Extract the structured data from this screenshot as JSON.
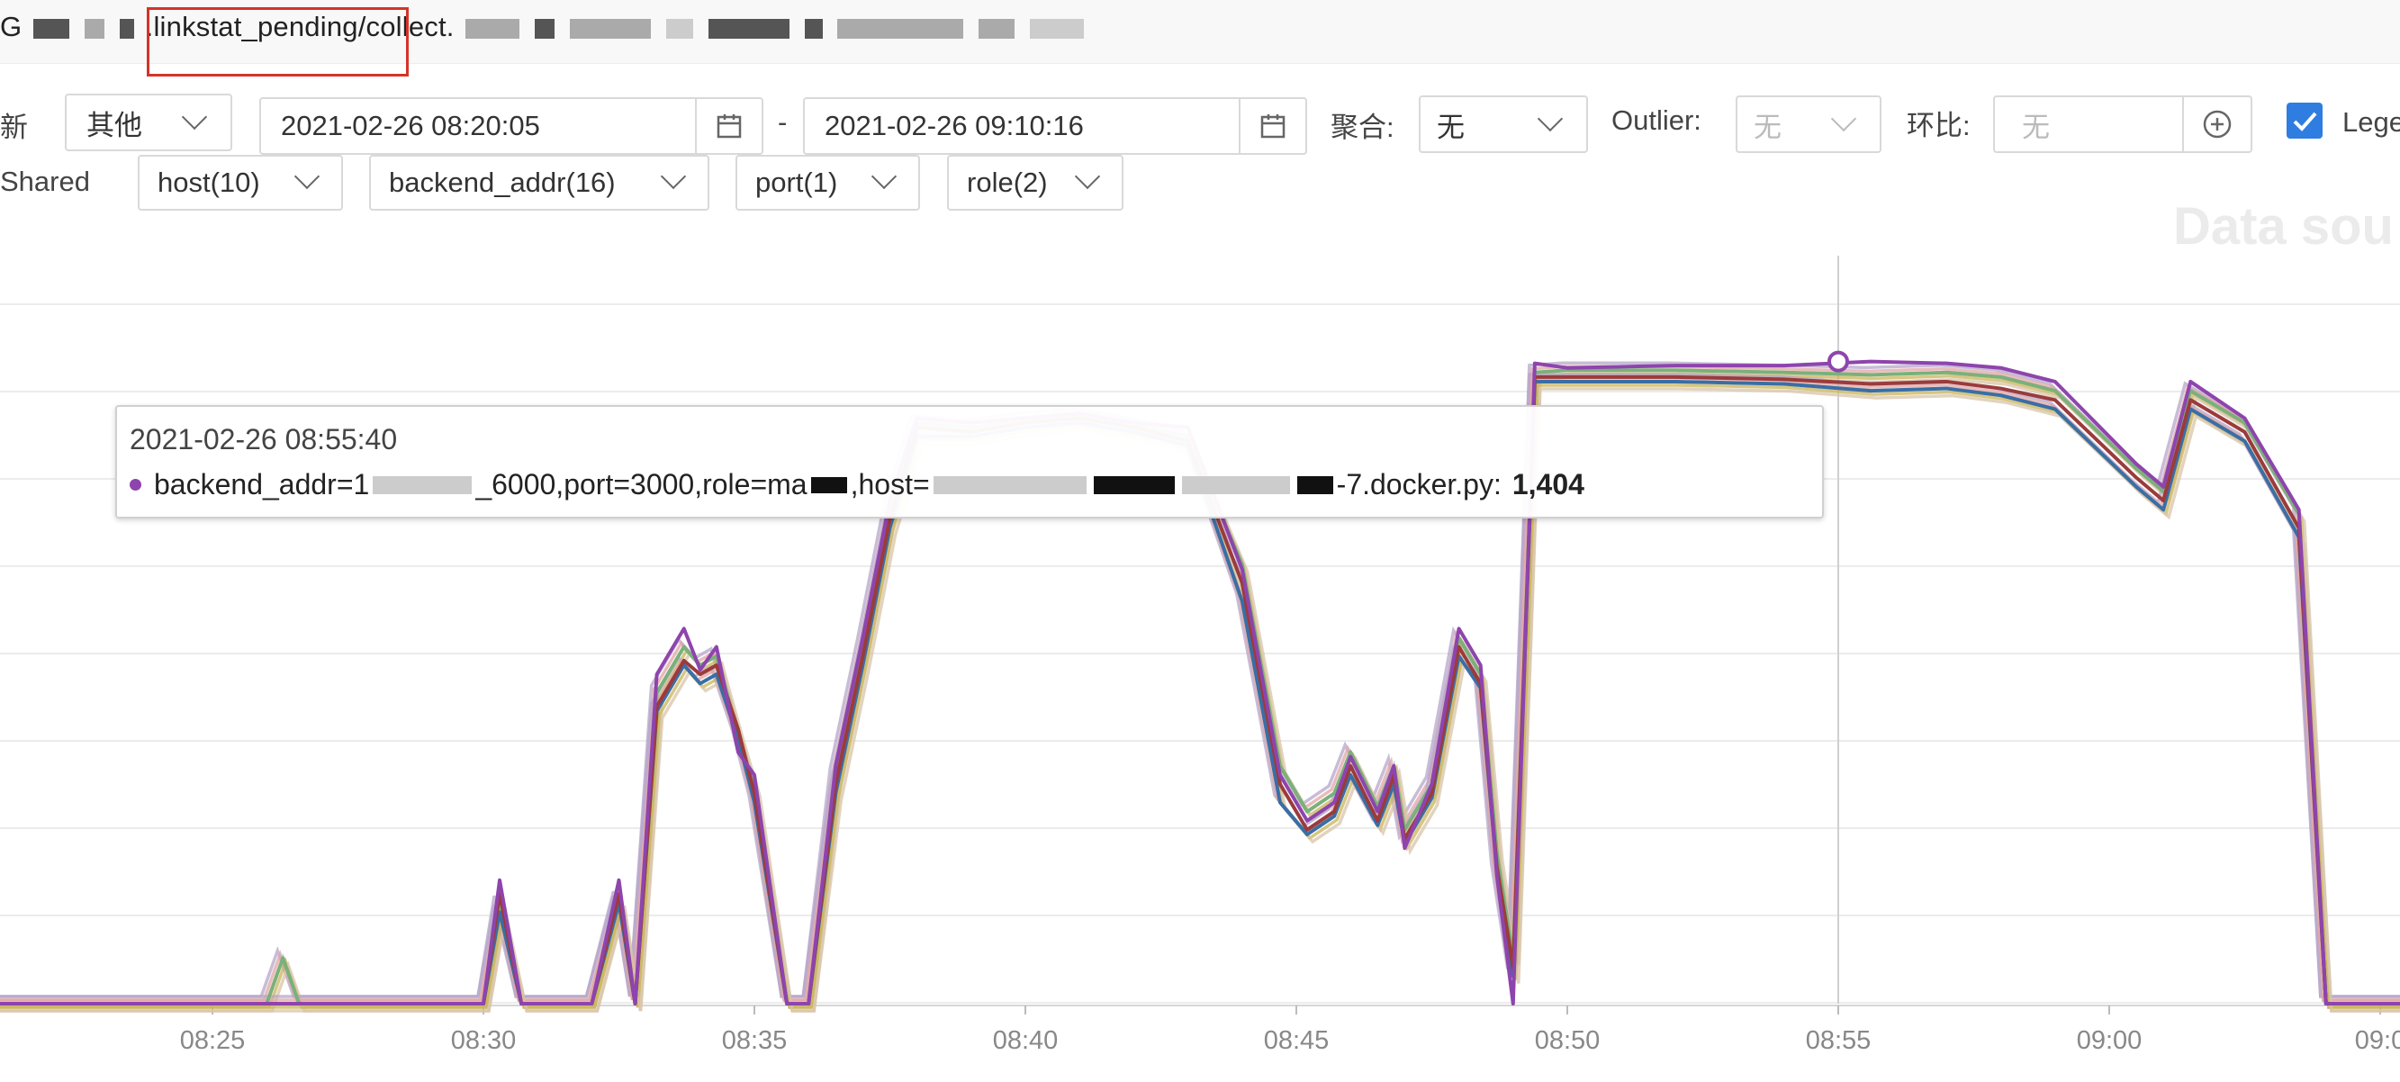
{
  "header": {
    "metric_prefix": "G",
    "metric_highlight": ".linkstat_pending/",
    "metric_suffix": "collect."
  },
  "toolbar": {
    "refresh_label": "新",
    "type_select": "其他",
    "time_start": "2021-02-26 08:20:05",
    "range_sep": "-",
    "time_end": "2021-02-26 09:10:16",
    "aggregate_label": "聚合:",
    "aggregate_value": "无",
    "outlier_label": "Outlier:",
    "outlier_value": "无",
    "ratio_label": "环比:",
    "ratio_placeholder": "无",
    "legend_label": "Lege"
  },
  "filters": {
    "shared_label": "Shared",
    "items": [
      {
        "label": "host(10)"
      },
      {
        "label": "backend_addr(16)"
      },
      {
        "label": "port(1)"
      },
      {
        "label": "role(2)"
      }
    ]
  },
  "watermark": "Data sou",
  "tooltip": {
    "time": "2021-02-26 08:55:40",
    "series_prefix": "backend_addr=1",
    "series_mid1": "_6000,port=3000,role=ma",
    "series_mid2": ",host=",
    "series_end": "-7.docker.py:",
    "value": "1,404"
  },
  "colors": {
    "accent": "#2f7de1",
    "highlight_box": "#d4332b",
    "series": [
      "#8e44ad",
      "#9b3b3b",
      "#3a6ea5",
      "#7bb07a",
      "#c9b458",
      "#b5a6c9",
      "#e0a6a6",
      "#9fc3d9"
    ]
  },
  "chart_data": {
    "type": "line",
    "x_ticks": [
      "08:25",
      "08:30",
      "08:35",
      "08:40",
      "08:45",
      "08:50",
      "08:55",
      "09:00",
      "09:0"
    ],
    "crosshair_time": "08:55",
    "ylim": [
      0,
      1600
    ],
    "grid": true,
    "series": [
      {
        "color": "#8e44ad",
        "points": [
          [
            "08:20",
            0
          ],
          [
            "08:23",
            0
          ],
          [
            "08:26",
            0
          ],
          [
            "08:28",
            0
          ],
          [
            "08:30",
            0
          ],
          [
            "08:30.3",
            270
          ],
          [
            "08:30.7",
            0
          ],
          [
            "08:32",
            0
          ],
          [
            "08:32.5",
            270
          ],
          [
            "08:32.8",
            0
          ],
          [
            "08:33.2",
            720
          ],
          [
            "08:33.7",
            820
          ],
          [
            "08:34",
            730
          ],
          [
            "08:34.3",
            780
          ],
          [
            "08:34.7",
            550
          ],
          [
            "08:35",
            500
          ],
          [
            "08:35.6",
            0
          ],
          [
            "08:36",
            0
          ],
          [
            "08:36.5",
            520
          ],
          [
            "08:37",
            800
          ],
          [
            "08:37.5",
            1100
          ],
          [
            "08:38",
            1280
          ],
          [
            "08:39",
            1270
          ],
          [
            "08:40",
            1280
          ],
          [
            "08:41",
            1290
          ],
          [
            "08:42",
            1270
          ],
          [
            "08:43",
            1260
          ],
          [
            "08:44",
            950
          ],
          [
            "08:44.7",
            500
          ],
          [
            "08:45.2",
            400
          ],
          [
            "08:45.7",
            440
          ],
          [
            "08:46",
            540
          ],
          [
            "08:46.5",
            420
          ],
          [
            "08:46.8",
            520
          ],
          [
            "08:47",
            340
          ],
          [
            "08:47.5",
            480
          ],
          [
            "08:48",
            820
          ],
          [
            "08:48.4",
            740
          ],
          [
            "08:48.7",
            280
          ],
          [
            "08:49",
            0
          ],
          [
            "08:49.4",
            1400
          ],
          [
            "08:50",
            1390
          ],
          [
            "08:52",
            1395
          ],
          [
            "08:54",
            1395
          ],
          [
            "08:55.6",
            1404
          ],
          [
            "08:57",
            1400
          ],
          [
            "08:58",
            1390
          ],
          [
            "08:59",
            1360
          ],
          [
            "09:00.5",
            1180
          ],
          [
            "09:01",
            1130
          ],
          [
            "09:01.5",
            1360
          ],
          [
            "09:02.5",
            1280
          ],
          [
            "09:03.5",
            1080
          ],
          [
            "09:04",
            0
          ],
          [
            "09:06",
            0
          ]
        ]
      },
      {
        "color": "#9b3b3b",
        "points": [
          [
            "08:20",
            0
          ],
          [
            "08:26",
            0
          ],
          [
            "08:28",
            0
          ],
          [
            "08:30",
            0
          ],
          [
            "08:30.3",
            240
          ],
          [
            "08:30.7",
            0
          ],
          [
            "08:32",
            0
          ],
          [
            "08:32.5",
            240
          ],
          [
            "08:32.8",
            0
          ],
          [
            "08:33.2",
            650
          ],
          [
            "08:33.7",
            750
          ],
          [
            "08:34",
            720
          ],
          [
            "08:34.3",
            740
          ],
          [
            "08:34.7",
            600
          ],
          [
            "08:35",
            460
          ],
          [
            "08:35.6",
            0
          ],
          [
            "08:36",
            0
          ],
          [
            "08:36.5",
            480
          ],
          [
            "08:37",
            760
          ],
          [
            "08:37.5",
            1060
          ],
          [
            "08:38",
            1260
          ],
          [
            "08:39",
            1250
          ],
          [
            "08:40",
            1270
          ],
          [
            "08:41",
            1280
          ],
          [
            "08:42",
            1260
          ],
          [
            "08:43",
            1230
          ],
          [
            "08:44",
            920
          ],
          [
            "08:44.7",
            480
          ],
          [
            "08:45.2",
            380
          ],
          [
            "08:45.7",
            420
          ],
          [
            "08:46",
            520
          ],
          [
            "08:46.5",
            400
          ],
          [
            "08:46.8",
            500
          ],
          [
            "08:47",
            360
          ],
          [
            "08:47.5",
            460
          ],
          [
            "08:48",
            780
          ],
          [
            "08:48.4",
            700
          ],
          [
            "08:48.7",
            300
          ],
          [
            "08:49",
            80
          ],
          [
            "08:49.4",
            1370
          ],
          [
            "08:50",
            1370
          ],
          [
            "08:52",
            1370
          ],
          [
            "08:54",
            1365
          ],
          [
            "08:55.6",
            1355
          ],
          [
            "08:57",
            1360
          ],
          [
            "08:58",
            1345
          ],
          [
            "08:59",
            1320
          ],
          [
            "09:00.5",
            1150
          ],
          [
            "09:01",
            1100
          ],
          [
            "09:01.5",
            1320
          ],
          [
            "09:02.5",
            1250
          ],
          [
            "09:03.5",
            1040
          ],
          [
            "09:04",
            0
          ],
          [
            "09:06",
            0
          ]
        ]
      },
      {
        "color": "#3a6ea5",
        "points": [
          [
            "08:20",
            0
          ],
          [
            "08:26",
            0
          ],
          [
            "08:30",
            0
          ],
          [
            "08:30.3",
            200
          ],
          [
            "08:30.7",
            0
          ],
          [
            "08:32",
            0
          ],
          [
            "08:32.5",
            220
          ],
          [
            "08:32.8",
            0
          ],
          [
            "08:33.2",
            640
          ],
          [
            "08:33.7",
            740
          ],
          [
            "08:34",
            700
          ],
          [
            "08:34.3",
            720
          ],
          [
            "08:34.7",
            580
          ],
          [
            "08:35",
            440
          ],
          [
            "08:35.6",
            0
          ],
          [
            "08:36",
            0
          ],
          [
            "08:36.5",
            460
          ],
          [
            "08:37",
            740
          ],
          [
            "08:37.5",
            1040
          ],
          [
            "08:38",
            1240
          ],
          [
            "08:39",
            1240
          ],
          [
            "08:40",
            1260
          ],
          [
            "08:41",
            1270
          ],
          [
            "08:42",
            1250
          ],
          [
            "08:43",
            1220
          ],
          [
            "08:44",
            880
          ],
          [
            "08:44.7",
            440
          ],
          [
            "08:45.2",
            370
          ],
          [
            "08:45.7",
            410
          ],
          [
            "08:46",
            500
          ],
          [
            "08:46.5",
            390
          ],
          [
            "08:46.8",
            480
          ],
          [
            "08:47",
            350
          ],
          [
            "08:47.5",
            450
          ],
          [
            "08:48",
            760
          ],
          [
            "08:48.4",
            690
          ],
          [
            "08:48.7",
            290
          ],
          [
            "08:49",
            60
          ],
          [
            "08:49.4",
            1360
          ],
          [
            "08:50",
            1360
          ],
          [
            "08:52",
            1360
          ],
          [
            "08:54",
            1355
          ],
          [
            "08:55.6",
            1340
          ],
          [
            "08:57",
            1345
          ],
          [
            "08:58",
            1330
          ],
          [
            "08:59",
            1300
          ],
          [
            "09:00.5",
            1130
          ],
          [
            "09:01",
            1080
          ],
          [
            "09:01.5",
            1300
          ],
          [
            "09:02.5",
            1230
          ],
          [
            "09:03.5",
            1020
          ],
          [
            "09:04",
            0
          ],
          [
            "09:06",
            0
          ]
        ]
      },
      {
        "color": "#7bb07a",
        "points": [
          [
            "08:20",
            0
          ],
          [
            "08:26",
            0
          ],
          [
            "08:26.3",
            100
          ],
          [
            "08:26.6",
            0
          ],
          [
            "08:30",
            0
          ],
          [
            "08:30.3",
            220
          ],
          [
            "08:30.7",
            0
          ],
          [
            "08:32",
            0
          ],
          [
            "08:32.5",
            230
          ],
          [
            "08:32.8",
            0
          ],
          [
            "08:33.2",
            680
          ],
          [
            "08:33.7",
            780
          ],
          [
            "08:34",
            740
          ],
          [
            "08:34.3",
            760
          ],
          [
            "08:34.7",
            590
          ],
          [
            "08:35",
            470
          ],
          [
            "08:35.6",
            0
          ],
          [
            "08:36",
            0
          ],
          [
            "08:36.5",
            500
          ],
          [
            "08:37",
            780
          ],
          [
            "08:37.5",
            1080
          ],
          [
            "08:38",
            1270
          ],
          [
            "08:39",
            1260
          ],
          [
            "08:40",
            1275
          ],
          [
            "08:41",
            1285
          ],
          [
            "08:42",
            1265
          ],
          [
            "08:43",
            1240
          ],
          [
            "08:44",
            960
          ],
          [
            "08:44.7",
            520
          ],
          [
            "08:45.2",
            420
          ],
          [
            "08:45.7",
            460
          ],
          [
            "08:46",
            550
          ],
          [
            "08:46.5",
            430
          ],
          [
            "08:46.8",
            520
          ],
          [
            "08:47",
            380
          ],
          [
            "08:47.5",
            480
          ],
          [
            "08:48",
            800
          ],
          [
            "08:48.4",
            720
          ],
          [
            "08:48.7",
            330
          ],
          [
            "08:49",
            100
          ],
          [
            "08:49.4",
            1380
          ],
          [
            "08:50",
            1385
          ],
          [
            "08:52",
            1385
          ],
          [
            "08:54",
            1380
          ],
          [
            "08:55.6",
            1375
          ],
          [
            "08:57",
            1380
          ],
          [
            "08:58",
            1370
          ],
          [
            "08:59",
            1340
          ],
          [
            "09:00.5",
            1170
          ],
          [
            "09:01",
            1120
          ],
          [
            "09:01.5",
            1340
          ],
          [
            "09:02.5",
            1270
          ],
          [
            "09:03.5",
            1070
          ],
          [
            "09:04",
            0
          ],
          [
            "09:06",
            0
          ]
        ]
      }
    ]
  }
}
